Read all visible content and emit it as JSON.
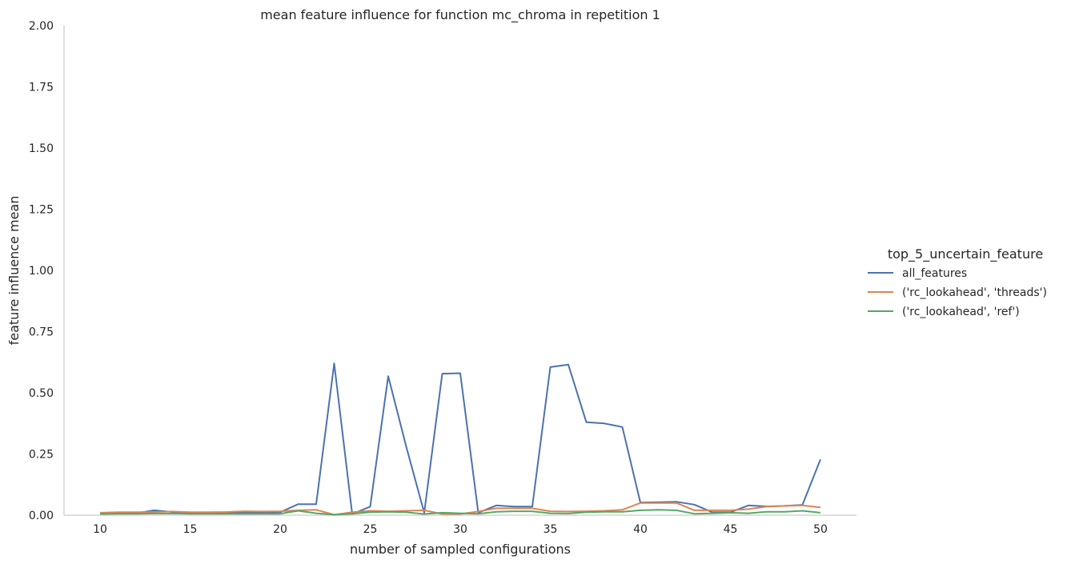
{
  "chart_data": {
    "type": "line",
    "title": "mean feature influence for function mc_chroma in repetition 1",
    "xlabel": "number of sampled configurations",
    "ylabel": "feature influence mean",
    "xlim": [
      8,
      52
    ],
    "ylim": [
      0,
      2.0
    ],
    "xticks": [
      10,
      15,
      20,
      25,
      30,
      35,
      40,
      45,
      50
    ],
    "yticks": [
      "0.00",
      "0.25",
      "0.50",
      "0.75",
      "1.00",
      "1.25",
      "1.50",
      "1.75",
      "2.00"
    ],
    "grid": false,
    "legend_title": "top_5_uncertain_feature",
    "legend_position": "right",
    "x": [
      10,
      11,
      12,
      13,
      14,
      15,
      16,
      17,
      18,
      19,
      20,
      21,
      22,
      23,
      24,
      25,
      26,
      27,
      28,
      29,
      30,
      31,
      32,
      33,
      34,
      35,
      36,
      37,
      38,
      39,
      40,
      41,
      42,
      43,
      44,
      45,
      46,
      47,
      48,
      49,
      50
    ],
    "series": [
      {
        "name": "all_features",
        "color": "#4c72b0",
        "values": [
          0.005,
          0.008,
          0.008,
          0.02,
          0.013,
          0.01,
          0.008,
          0.008,
          0.01,
          0.01,
          0.012,
          0.045,
          0.045,
          0.62,
          0.005,
          0.035,
          0.568,
          0.28,
          0.01,
          0.578,
          0.58,
          0.01,
          0.04,
          0.035,
          0.035,
          0.605,
          0.615,
          0.38,
          0.375,
          0.36,
          0.052,
          0.053,
          0.055,
          0.043,
          0.012,
          0.012,
          0.04,
          0.036,
          0.038,
          0.042,
          0.228
        ]
      },
      {
        "name": "('rc_lookahead', 'threads')",
        "color": "#dd8452",
        "values": [
          0.01,
          0.012,
          0.012,
          0.013,
          0.015,
          0.012,
          0.012,
          0.013,
          0.016,
          0.015,
          0.016,
          0.02,
          0.022,
          0.002,
          0.012,
          0.018,
          0.016,
          0.018,
          0.02,
          0.005,
          0.005,
          0.015,
          0.028,
          0.028,
          0.028,
          0.016,
          0.015,
          0.016,
          0.018,
          0.022,
          0.05,
          0.05,
          0.05,
          0.02,
          0.02,
          0.02,
          0.025,
          0.035,
          0.038,
          0.04,
          0.032
        ]
      },
      {
        "name": "('rc_lookahead', 'ref')",
        "color": "#55a868",
        "values": [
          0.005,
          0.006,
          0.006,
          0.007,
          0.007,
          0.006,
          0.006,
          0.006,
          0.006,
          0.006,
          0.006,
          0.018,
          0.008,
          0.002,
          0.006,
          0.012,
          0.014,
          0.012,
          0.005,
          0.01,
          0.008,
          0.006,
          0.014,
          0.016,
          0.016,
          0.008,
          0.007,
          0.012,
          0.014,
          0.014,
          0.02,
          0.022,
          0.02,
          0.006,
          0.008,
          0.01,
          0.008,
          0.014,
          0.014,
          0.018,
          0.01
        ]
      }
    ]
  }
}
